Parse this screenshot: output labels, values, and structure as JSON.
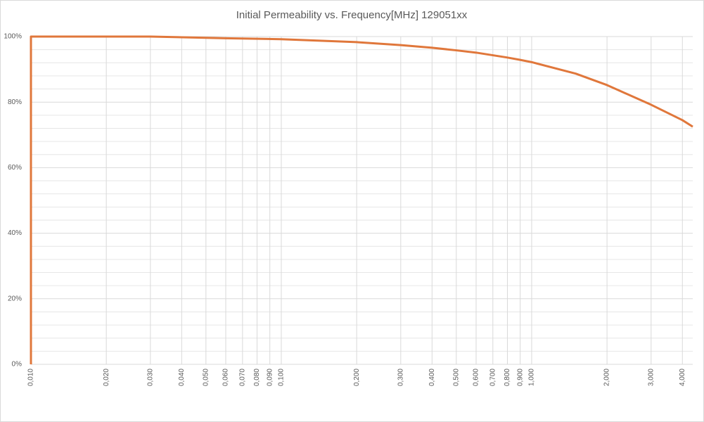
{
  "chart_data": {
    "type": "line",
    "title": "Initial Permeability  vs. Frequency[MHz] 129051xx",
    "x": [
      0.01,
      0.01,
      0.03,
      0.06,
      0.1,
      0.2,
      0.3,
      0.4,
      0.5,
      0.6,
      0.7,
      0.8,
      0.9,
      1,
      1.5,
      2,
      3,
      4,
      4.4
    ],
    "series": [
      {
        "color": "#e0773b",
        "values": [
          0,
          100,
          100,
          99.5,
          99.2,
          98.3,
          97.4,
          96.6,
          95.8,
          95.1,
          94.3,
          93.6,
          92.9,
          92.2,
          88.7,
          85.2,
          79.2,
          74.5,
          72.5
        ]
      }
    ],
    "xlog": true,
    "xlim": [
      0.01,
      4.4
    ],
    "xticks": [
      {
        "value": 0.01,
        "label": "0,010"
      },
      {
        "value": 0.02,
        "label": "0,020"
      },
      {
        "value": 0.03,
        "label": "0,030"
      },
      {
        "value": 0.04,
        "label": "0,040"
      },
      {
        "value": 0.05,
        "label": "0,050"
      },
      {
        "value": 0.06,
        "label": "0,060"
      },
      {
        "value": 0.07,
        "label": "0,070"
      },
      {
        "value": 0.08,
        "label": "0,080"
      },
      {
        "value": 0.09,
        "label": "0,090"
      },
      {
        "value": 0.1,
        "label": "0,100"
      },
      {
        "value": 0.2,
        "label": "0,200"
      },
      {
        "value": 0.3,
        "label": "0,300"
      },
      {
        "value": 0.4,
        "label": "0,400"
      },
      {
        "value": 0.5,
        "label": "0,500"
      },
      {
        "value": 0.6,
        "label": "0,600"
      },
      {
        "value": 0.7,
        "label": "0,700"
      },
      {
        "value": 0.8,
        "label": "0,800"
      },
      {
        "value": 0.9,
        "label": "0,900"
      },
      {
        "value": 1,
        "label": "1,000"
      },
      {
        "value": 2,
        "label": "2,000"
      },
      {
        "value": 3,
        "label": "3,000"
      },
      {
        "value": 4,
        "label": "4,000"
      }
    ],
    "ylim": [
      0,
      100
    ],
    "yticks": [
      {
        "value": 0,
        "label": "0%"
      },
      {
        "value": 20,
        "label": "20%"
      },
      {
        "value": 40,
        "label": "40%"
      },
      {
        "value": 60,
        "label": "60%"
      },
      {
        "value": 80,
        "label": "80%"
      },
      {
        "value": 100,
        "label": "100%"
      }
    ],
    "yminorticks": [
      4,
      8,
      12,
      16,
      24,
      28,
      32,
      36,
      44,
      48,
      52,
      56,
      64,
      68,
      72,
      76,
      84,
      88,
      92,
      96
    ],
    "grid": true
  }
}
